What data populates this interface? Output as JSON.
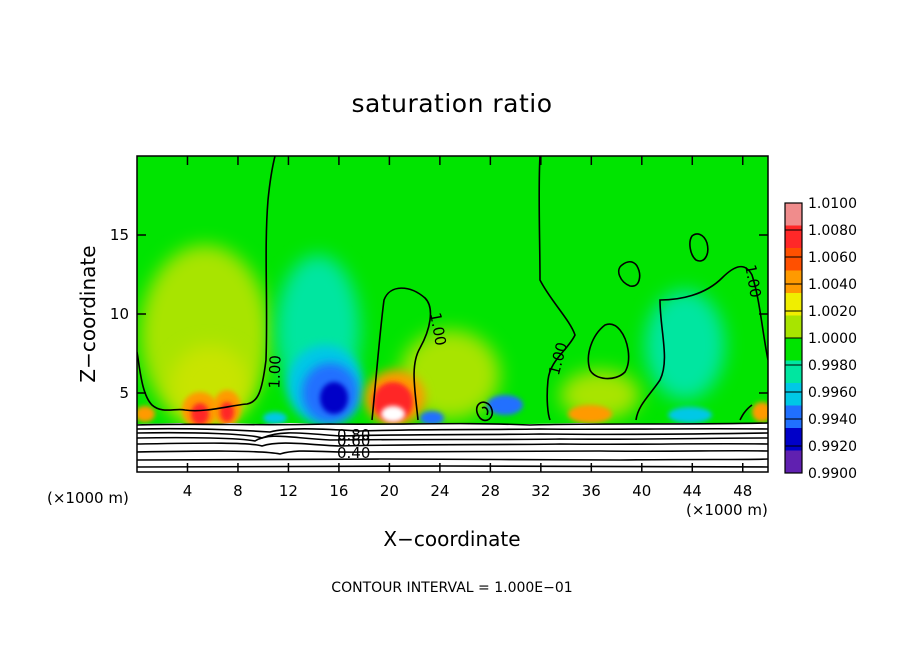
{
  "chart_data": {
    "type": "heatmap",
    "title": "saturation ratio",
    "xlabel": "X−coordinate",
    "ylabel": "Z−coordinate",
    "x_unit": "(×1000 m)",
    "y_unit": "(×1000 m)",
    "xlim": [
      0,
      50
    ],
    "ylim": [
      0,
      20
    ],
    "x_ticks": [
      4,
      8,
      12,
      16,
      20,
      24,
      28,
      32,
      36,
      40,
      44,
      48
    ],
    "x_tick_labels": [
      "4",
      "8",
      "12",
      "16",
      "20",
      "24",
      "28",
      "32",
      "36",
      "40",
      "44",
      "48"
    ],
    "y_ticks": [
      5,
      10,
      15
    ],
    "y_tick_labels": [
      "5",
      "10",
      "15"
    ],
    "colorbar": {
      "ticks": [
        "1.0100",
        "1.0080",
        "1.0060",
        "1.0040",
        "1.0020",
        "1.0000",
        "0.9980",
        "0.9960",
        "0.9940",
        "0.9920",
        "0.9900"
      ],
      "colors": [
        "#f08c8c",
        "#ff2828",
        "#ff5000",
        "#ff9a00",
        "#f0ee00",
        "#a8e400",
        "#00e400",
        "#00e6a0",
        "#00c8e6",
        "#2070ff",
        "#0000c8",
        "#6020b0"
      ]
    },
    "contour_labels": [
      "1.00",
      "1.00",
      "1.00",
      "1.00",
      "0.80",
      "0.60",
      "0.40"
    ],
    "contour_interval_text": "CONTOUR INTERVAL = 1.000E−01",
    "anomalies": [
      {
        "x": 5.0,
        "z": 3.8,
        "value": 1.009
      },
      {
        "x": 7.3,
        "z": 3.9,
        "value": 1.008
      },
      {
        "x": 15.0,
        "z": 5.2,
        "value": 0.9935
      },
      {
        "x": 20.5,
        "z": 4.5,
        "value": 1.008
      },
      {
        "x": 29.0,
        "z": 3.9,
        "value": 0.9945
      },
      {
        "x": 35.0,
        "z": 3.9,
        "value": 1.004
      },
      {
        "x": 44.0,
        "z": 3.6,
        "value": 0.996
      },
      {
        "x": 49.5,
        "z": 3.8,
        "value": 1.006
      }
    ]
  }
}
